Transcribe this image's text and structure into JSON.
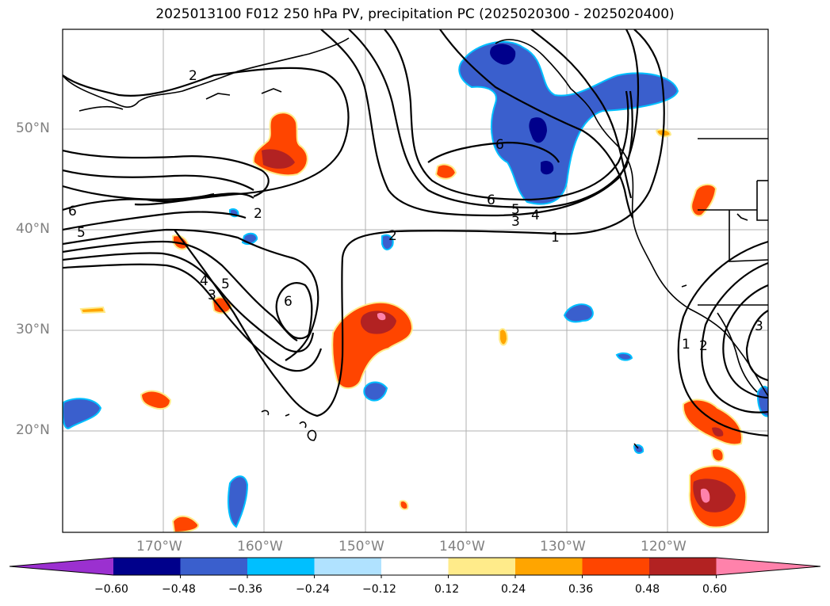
{
  "title": "2025013100 F012 250 hPa PV, precipitation PC (2025020300 - 2025020400)",
  "map": {
    "lat_labels": [
      "50°N",
      "40°N",
      "30°N",
      "20°N"
    ],
    "lon_labels": [
      "170°W",
      "160°W",
      "150°W",
      "140°W",
      "130°W",
      "120°W"
    ],
    "contour_labels": [
      "2",
      "6",
      "5",
      "2",
      "4",
      "3",
      "5",
      "6",
      "2",
      "6",
      "5",
      "4",
      "3",
      "1",
      "1",
      "2",
      "3",
      "6"
    ],
    "contour_color": "#000000",
    "grid_color": "#b0b0b0",
    "coast_color": "#000000"
  },
  "colorbar": {
    "tick_labels": [
      "−0.60",
      "−0.48",
      "−0.36",
      "−0.24",
      "−0.12",
      "0.12",
      "0.24",
      "0.36",
      "0.48",
      "0.60"
    ],
    "colors": [
      "#9b30d0",
      "#00008b",
      "#3a5fcd",
      "#00bfff",
      "#b0e2ff",
      "#ffffff",
      "#ffeb8a",
      "#ffa500",
      "#ff4500",
      "#b22222",
      "#ff82ab"
    ]
  }
}
